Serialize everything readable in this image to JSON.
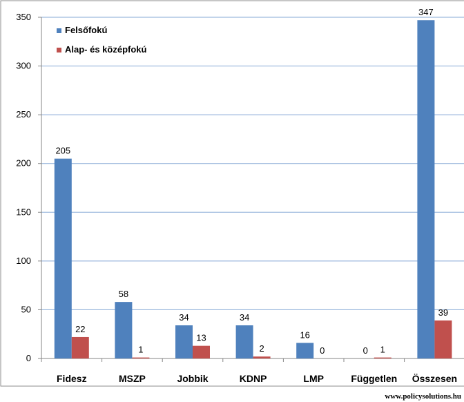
{
  "chart_data": {
    "type": "bar",
    "categories": [
      "Fidesz",
      "MSZP",
      "Jobbik",
      "KDNP",
      "LMP",
      "Független",
      "Összesen"
    ],
    "series": [
      {
        "name": "Felsőfokú",
        "values": [
          205,
          58,
          34,
          34,
          16,
          0,
          347
        ],
        "color": "#4F81BD"
      },
      {
        "name": "Alap- és középfokú",
        "values": [
          22,
          1,
          13,
          2,
          0,
          1,
          39
        ],
        "color": "#C0504D"
      }
    ],
    "ylim": [
      0,
      350
    ],
    "yticks": [
      0,
      50,
      100,
      150,
      200,
      250,
      300,
      350
    ],
    "grid": true,
    "legend_position": "top-left",
    "data_labels": true
  },
  "source": "www.policysolutions.hu"
}
